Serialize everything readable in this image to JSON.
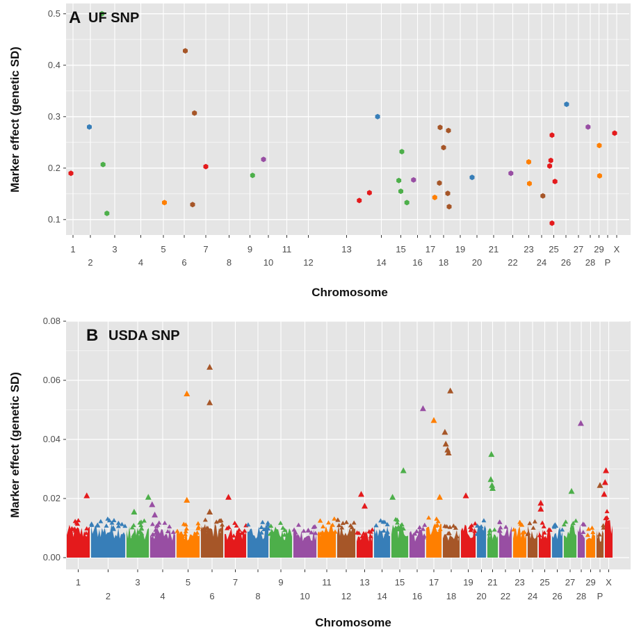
{
  "colors": {
    "panel_bg": "#e5e5e5",
    "grid": "#ffffff",
    "palette": [
      "#e41a1c",
      "#377eb8",
      "#4daf4a",
      "#984ea3",
      "#ff7f00",
      "#a65628"
    ]
  },
  "chart_data": [
    {
      "type": "scatter",
      "panel": "A",
      "title": "UF SNP",
      "xlabel": "Chromosome",
      "ylabel": "Marker effect (genetic SD)",
      "ylim": [
        0.07,
        0.52
      ],
      "yticks": [
        0.1,
        0.2,
        0.3,
        0.4,
        0.5
      ],
      "ytick_labels": [
        "0.1",
        "0.2",
        "0.3",
        "0.4",
        "0.5"
      ],
      "grid": true,
      "marker": "hexagon",
      "chromosomes_upper": [
        "1",
        "3",
        "5",
        "7",
        "9",
        "11",
        "13",
        "15",
        "17",
        "19",
        "21",
        "23",
        "25",
        "27",
        "29",
        "X"
      ],
      "chromosomes_lower": [
        "2",
        "4",
        "6",
        "8",
        "10",
        "12",
        "14",
        "16",
        "18",
        "20",
        "22",
        "24",
        "26",
        "28",
        "P"
      ],
      "points": [
        {
          "chr": "1",
          "pos": 0.35,
          "y": 0.19
        },
        {
          "chr": "2",
          "pos": 0.45,
          "y": 0.28
        },
        {
          "chr": "3",
          "pos": 0.08,
          "y": 0.207
        },
        {
          "chr": "3",
          "pos": 0.22,
          "y": 0.112
        },
        {
          "chr": "3",
          "pos": 0.04,
          "y": 0.5
        },
        {
          "chr": "5",
          "pos": 0.55,
          "y": 0.133
        },
        {
          "chr": "6",
          "pos": 0.55,
          "y": 0.428
        },
        {
          "chr": "6",
          "pos": 0.9,
          "y": 0.129
        },
        {
          "chr": "6",
          "pos": 0.99,
          "y": 0.307
        },
        {
          "chr": "7",
          "pos": 0.5,
          "y": 0.203
        },
        {
          "chr": "9",
          "pos": 0.65,
          "y": 0.186
        },
        {
          "chr": "10",
          "pos": 0.25,
          "y": 0.217
        },
        {
          "chr": "13",
          "pos": 0.75,
          "y": 0.137
        },
        {
          "chr": "13",
          "pos": 0.95,
          "y": 0.152
        },
        {
          "chr": "14",
          "pos": 0.3,
          "y": 0.3
        },
        {
          "chr": "15",
          "pos": 0.4,
          "y": 0.176
        },
        {
          "chr": "15",
          "pos": 0.5,
          "y": 0.155
        },
        {
          "chr": "15",
          "pos": 0.55,
          "y": 0.232
        },
        {
          "chr": "15",
          "pos": 0.8,
          "y": 0.133
        },
        {
          "chr": "16",
          "pos": 0.2,
          "y": 0.177
        },
        {
          "chr": "17",
          "pos": 0.85,
          "y": 0.143
        },
        {
          "chr": "18",
          "pos": 0.2,
          "y": 0.171
        },
        {
          "chr": "18",
          "pos": 0.25,
          "y": 0.279
        },
        {
          "chr": "18",
          "pos": 0.5,
          "y": 0.24
        },
        {
          "chr": "18",
          "pos": 0.8,
          "y": 0.151
        },
        {
          "chr": "18",
          "pos": 0.85,
          "y": 0.273
        },
        {
          "chr": "18",
          "pos": 0.9,
          "y": 0.125
        },
        {
          "chr": "20",
          "pos": 0.15,
          "y": 0.182
        },
        {
          "chr": "22",
          "pos": 0.4,
          "y": 0.19
        },
        {
          "chr": "23",
          "pos": 0.5,
          "y": 0.212
        },
        {
          "chr": "23",
          "pos": 0.55,
          "y": 0.17
        },
        {
          "chr": "24",
          "pos": 0.6,
          "y": 0.146
        },
        {
          "chr": "25",
          "pos": 0.15,
          "y": 0.204
        },
        {
          "chr": "25",
          "pos": 0.25,
          "y": 0.215
        },
        {
          "chr": "25",
          "pos": 0.35,
          "y": 0.264
        },
        {
          "chr": "25",
          "pos": 0.35,
          "y": 0.093
        },
        {
          "chr": "25",
          "pos": 0.6,
          "y": 0.174
        },
        {
          "chr": "26",
          "pos": 0.55,
          "y": 0.324
        },
        {
          "chr": "28",
          "pos": 0.3,
          "y": 0.28
        },
        {
          "chr": "29",
          "pos": 0.55,
          "y": 0.244
        },
        {
          "chr": "29",
          "pos": 0.6,
          "y": 0.185
        },
        {
          "chr": "X",
          "pos": 0.2,
          "y": 0.268
        }
      ]
    },
    {
      "type": "scatter",
      "panel": "B",
      "title": "USDA SNP",
      "xlabel": "Chromosome",
      "ylabel": "Marker effect (genetic SD)",
      "ylim": [
        -0.004,
        0.08
      ],
      "yticks": [
        0.0,
        0.02,
        0.04,
        0.06,
        0.08
      ],
      "ytick_labels": [
        "0.00",
        "0.02",
        "0.04",
        "0.06",
        "0.08"
      ],
      "grid": true,
      "marker": "triangle",
      "chromosomes_upper": [
        "1",
        "3",
        "5",
        "7",
        "9",
        "11",
        "13",
        "15",
        "17",
        "19",
        "21",
        "23",
        "25",
        "27",
        "29",
        "X"
      ],
      "chromosomes_lower": [
        "2",
        "4",
        "6",
        "8",
        "10",
        "12",
        "14",
        "16",
        "18",
        "20",
        "22",
        "24",
        "26",
        "28",
        "P"
      ],
      "peaks": [
        {
          "chr": "1",
          "pos": 0.85,
          "y": 0.021
        },
        {
          "chr": "3",
          "pos": 0.35,
          "y": 0.0155
        },
        {
          "chr": "3",
          "pos": 0.95,
          "y": 0.0205
        },
        {
          "chr": "4",
          "pos": 0.1,
          "y": 0.018
        },
        {
          "chr": "4",
          "pos": 0.2,
          "y": 0.0145
        },
        {
          "chr": "5",
          "pos": 0.45,
          "y": 0.0555
        },
        {
          "chr": "5",
          "pos": 0.45,
          "y": 0.0195
        },
        {
          "chr": "6",
          "pos": 0.4,
          "y": 0.0645
        },
        {
          "chr": "6",
          "pos": 0.4,
          "y": 0.0525
        },
        {
          "chr": "6",
          "pos": 0.4,
          "y": 0.0155
        },
        {
          "chr": "7",
          "pos": 0.2,
          "y": 0.0205
        },
        {
          "chr": "13",
          "pos": 0.3,
          "y": 0.0215
        },
        {
          "chr": "13",
          "pos": 0.5,
          "y": 0.0175
        },
        {
          "chr": "15",
          "pos": 0.1,
          "y": 0.0205
        },
        {
          "chr": "15",
          "pos": 0.7,
          "y": 0.0295
        },
        {
          "chr": "16",
          "pos": 0.85,
          "y": 0.0505
        },
        {
          "chr": "17",
          "pos": 0.5,
          "y": 0.0465
        },
        {
          "chr": "17",
          "pos": 0.85,
          "y": 0.0205
        },
        {
          "chr": "18",
          "pos": 0.15,
          "y": 0.0425
        },
        {
          "chr": "18",
          "pos": 0.2,
          "y": 0.0385
        },
        {
          "chr": "18",
          "pos": 0.3,
          "y": 0.0365
        },
        {
          "chr": "18",
          "pos": 0.35,
          "y": 0.0355
        },
        {
          "chr": "18",
          "pos": 0.45,
          "y": 0.0565
        },
        {
          "chr": "19",
          "pos": 0.35,
          "y": 0.021
        },
        {
          "chr": "21",
          "pos": 0.4,
          "y": 0.035
        },
        {
          "chr": "21",
          "pos": 0.35,
          "y": 0.0265
        },
        {
          "chr": "21",
          "pos": 0.45,
          "y": 0.0245
        },
        {
          "chr": "21",
          "pos": 0.5,
          "y": 0.0235
        },
        {
          "chr": "25",
          "pos": 0.2,
          "y": 0.0185
        },
        {
          "chr": "25",
          "pos": 0.2,
          "y": 0.0165
        },
        {
          "chr": "27",
          "pos": 0.6,
          "y": 0.0225
        },
        {
          "chr": "28",
          "pos": 0.45,
          "y": 0.0455
        },
        {
          "chr": "X",
          "pos": 0.2,
          "y": 0.0295
        },
        {
          "chr": "X",
          "pos": 0.1,
          "y": 0.0255
        },
        {
          "chr": "X",
          "pos": 0.0,
          "y": 0.0215
        },
        {
          "chr": "P",
          "pos": 0.5,
          "y": 0.0245
        }
      ]
    }
  ]
}
